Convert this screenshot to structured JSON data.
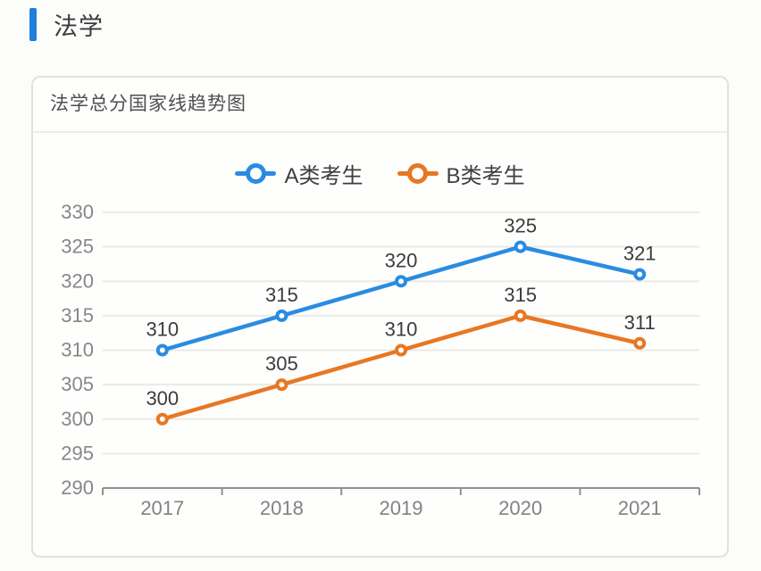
{
  "page": {
    "title": "法学",
    "accent_color": "#1e80d8"
  },
  "card": {
    "title": "法学总分国家线趋势图"
  },
  "chart_data": {
    "type": "line",
    "title": "法学总分国家线趋势图",
    "categories": [
      "2017",
      "2018",
      "2019",
      "2020",
      "2021"
    ],
    "series": [
      {
        "name": "A类考生",
        "color": "#2a8ce0",
        "values": [
          310,
          315,
          320,
          325,
          321
        ]
      },
      {
        "name": "B类考生",
        "color": "#e87722",
        "values": [
          300,
          305,
          310,
          315,
          311
        ]
      }
    ],
    "xlabel": "",
    "ylabel": "",
    "ylim": [
      290,
      330
    ],
    "ytick_step": 5,
    "grid": true,
    "legend_position": "top-center",
    "marker": "open-circle",
    "data_labels": true
  }
}
